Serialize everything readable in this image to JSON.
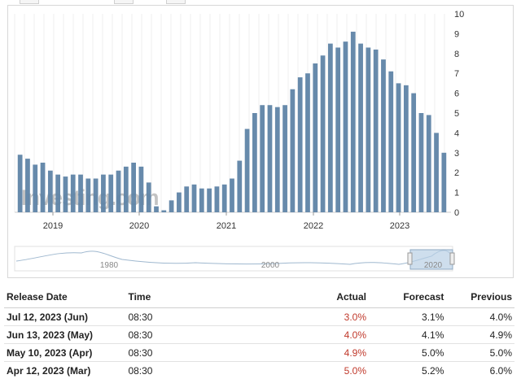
{
  "chart_data": {
    "type": "bar",
    "watermark": "Investing.com",
    "ylim": [
      0,
      10
    ],
    "y_ticks": [
      "0",
      "1",
      "2",
      "3",
      "4",
      "5",
      "6",
      "7",
      "8",
      "9",
      "10"
    ],
    "x_ticks": [
      "2019",
      "2020",
      "2021",
      "2022",
      "2023"
    ],
    "navigator_ticks": [
      "1980",
      "2000",
      "2020"
    ],
    "bar_color": "#5f84a6",
    "values": [
      2.9,
      2.7,
      2.4,
      2.5,
      2.1,
      1.9,
      1.8,
      1.9,
      1.9,
      1.7,
      1.7,
      1.9,
      1.9,
      2.1,
      2.3,
      2.5,
      2.3,
      1.5,
      0.3,
      0.1,
      0.6,
      1.0,
      1.3,
      1.4,
      1.2,
      1.2,
      1.3,
      1.4,
      1.7,
      2.6,
      4.2,
      5.0,
      5.4,
      5.4,
      5.3,
      5.4,
      6.2,
      6.8,
      7.0,
      7.5,
      7.9,
      8.5,
      8.3,
      8.6,
      9.1,
      8.5,
      8.3,
      8.2,
      7.7,
      7.1,
      6.5,
      6.4,
      6.0,
      5.0,
      4.9,
      4.0,
      3.0
    ]
  },
  "table": {
    "headers": {
      "release_date": "Release Date",
      "time": "Time",
      "actual": "Actual",
      "forecast": "Forecast",
      "previous": "Previous"
    },
    "rows": [
      {
        "release_date": "Jul 12, 2023 (Jun)",
        "time": "08:30",
        "actual": "3.0%",
        "forecast": "3.1%",
        "previous": "4.0%"
      },
      {
        "release_date": "Jun 13, 2023 (May)",
        "time": "08:30",
        "actual": "4.0%",
        "forecast": "4.1%",
        "previous": "4.9%"
      },
      {
        "release_date": "May 10, 2023 (Apr)",
        "time": "08:30",
        "actual": "4.9%",
        "forecast": "5.0%",
        "previous": "5.0%"
      },
      {
        "release_date": "Apr 12, 2023 (Mar)",
        "time": "08:30",
        "actual": "5.0%",
        "forecast": "5.2%",
        "previous": "6.0%"
      }
    ]
  }
}
